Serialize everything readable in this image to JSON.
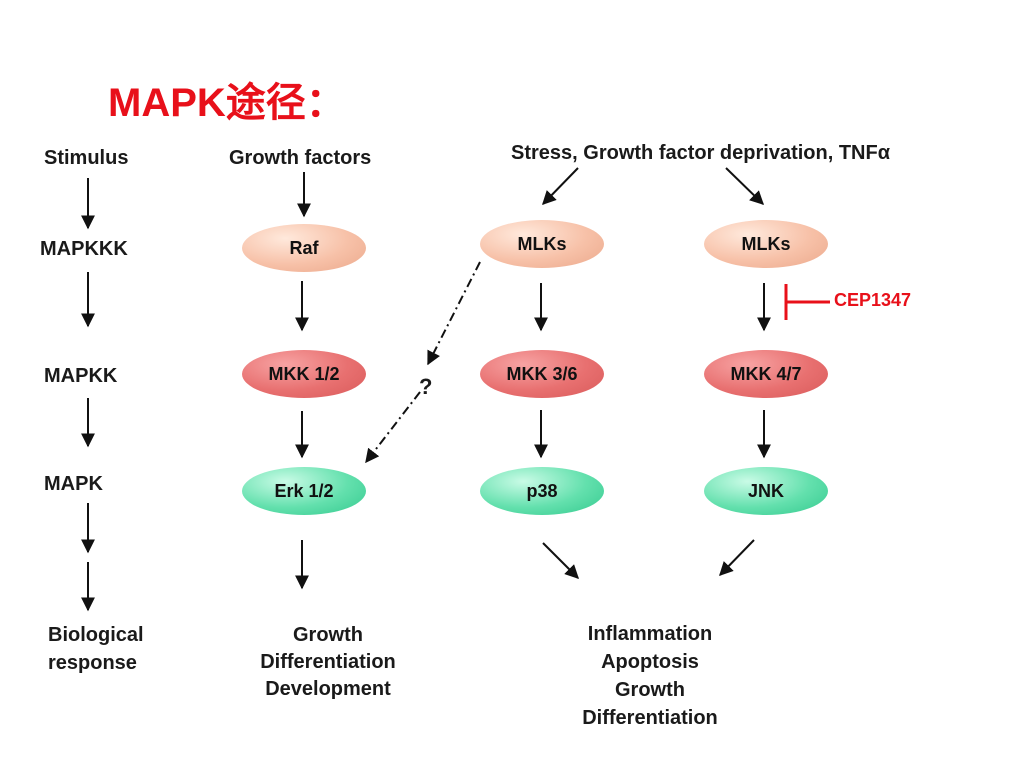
{
  "title": "MAPK途径：",
  "left_column": {
    "stimulus": "Stimulus",
    "mapkkk": "MAPKKK",
    "mapkk": "MAPKK",
    "mapk": "MAPK",
    "response_line1": "Biological",
    "response_line2": "response"
  },
  "erk_path": {
    "stimulus": "Growth factors",
    "mapkkk": "Raf",
    "mapkk": "MKK 1/2",
    "mapk": "Erk 1/2",
    "response": [
      "Growth",
      "Differentiation",
      "Development"
    ]
  },
  "stress_stimulus": "Stress, Growth factor deprivation, TNFα",
  "p38_path": {
    "mapkkk": "MLKs",
    "mapkk": "MKK 3/6",
    "mapk": "p38"
  },
  "jnk_path": {
    "mapkkk": "MLKs",
    "mapkk": "MKK 4/7",
    "mapk": "JNK",
    "inhibitor": "CEP1347"
  },
  "unknown_link_mark": "?",
  "stress_response": [
    "Inflammation",
    "Apoptosis",
    "Growth",
    "Differentiation"
  ],
  "colors": {
    "title": "#e8101a",
    "mapkkk_node": "#f7c1a8",
    "mapkk_node": "#e87070",
    "mapk_node": "#63e0ad",
    "inhibitor": "#e8101a"
  }
}
